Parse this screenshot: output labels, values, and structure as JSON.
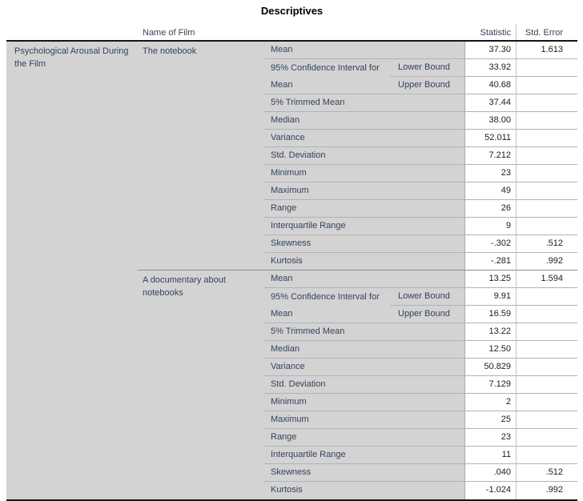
{
  "title": "Descriptives",
  "columns": {
    "name_of_film": "Name of Film",
    "statistic": "Statistic",
    "std_error": "Std. Error"
  },
  "row_label": "Psychological Arousal During the Film",
  "colors": {
    "label_text": "#33435a",
    "value_text": "#1c1c1c",
    "cell_background_gray": "#d3d3d3",
    "row_separator": "#b2b2b2",
    "group_separator": "#8f8f8f",
    "strong_border": "#151515"
  },
  "groups": [
    {
      "film": "The notebook",
      "rows": [
        {
          "label": "Mean",
          "statistic": "37.30",
          "std_error": "1.613"
        },
        {
          "label": "95% Confidence Interval for Mean",
          "sub_rows": [
            {
              "label": "Lower Bound",
              "statistic": "33.92",
              "std_error": ""
            },
            {
              "label": "Upper Bound",
              "statistic": "40.68",
              "std_error": ""
            }
          ]
        },
        {
          "label": "5% Trimmed Mean",
          "statistic": "37.44",
          "std_error": ""
        },
        {
          "label": "Median",
          "statistic": "38.00",
          "std_error": ""
        },
        {
          "label": "Variance",
          "statistic": "52.011",
          "std_error": ""
        },
        {
          "label": "Std. Deviation",
          "statistic": "7.212",
          "std_error": ""
        },
        {
          "label": "Minimum",
          "statistic": "23",
          "std_error": ""
        },
        {
          "label": "Maximum",
          "statistic": "49",
          "std_error": ""
        },
        {
          "label": "Range",
          "statistic": "26",
          "std_error": ""
        },
        {
          "label": "Interquartile Range",
          "statistic": "9",
          "std_error": ""
        },
        {
          "label": "Skewness",
          "statistic": "-.302",
          "std_error": ".512"
        },
        {
          "label": "Kurtosis",
          "statistic": "-.281",
          "std_error": ".992"
        }
      ]
    },
    {
      "film": "A documentary about notebooks",
      "rows": [
        {
          "label": "Mean",
          "statistic": "13.25",
          "std_error": "1.594"
        },
        {
          "label": "95% Confidence Interval for Mean",
          "sub_rows": [
            {
              "label": "Lower Bound",
              "statistic": "9.91",
              "std_error": ""
            },
            {
              "label": "Upper Bound",
              "statistic": "16.59",
              "std_error": ""
            }
          ]
        },
        {
          "label": "5% Trimmed Mean",
          "statistic": "13.22",
          "std_error": ""
        },
        {
          "label": "Median",
          "statistic": "12.50",
          "std_error": ""
        },
        {
          "label": "Variance",
          "statistic": "50.829",
          "std_error": ""
        },
        {
          "label": "Std. Deviation",
          "statistic": "7.129",
          "std_error": ""
        },
        {
          "label": "Minimum",
          "statistic": "2",
          "std_error": ""
        },
        {
          "label": "Maximum",
          "statistic": "25",
          "std_error": ""
        },
        {
          "label": "Range",
          "statistic": "23",
          "std_error": ""
        },
        {
          "label": "Interquartile Range",
          "statistic": "11",
          "std_error": ""
        },
        {
          "label": "Skewness",
          "statistic": ".040",
          "std_error": ".512"
        },
        {
          "label": "Kurtosis",
          "statistic": "-1.024",
          "std_error": ".992"
        }
      ]
    }
  ]
}
